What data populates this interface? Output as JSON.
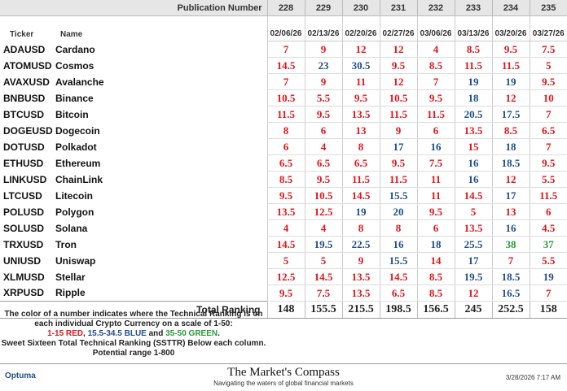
{
  "header": {
    "publication_label": "Publication Number",
    "ticker_label": "Ticker",
    "name_label": "Name"
  },
  "columns": [
    {
      "number": "228",
      "date": "02/06/26"
    },
    {
      "number": "229",
      "date": "02/13/26"
    },
    {
      "number": "230",
      "date": "02/20/26"
    },
    {
      "number": "231",
      "date": "02/27/26"
    },
    {
      "number": "232",
      "date": "03/06/26"
    },
    {
      "number": "233",
      "date": "03/13/26"
    },
    {
      "number": "234",
      "date": "03/20/26"
    },
    {
      "number": "235",
      "date": "03/27/26"
    }
  ],
  "rows": [
    {
      "ticker": "ADAUSD",
      "name": "Cardano",
      "values": [
        7,
        9,
        12,
        12,
        4,
        8.5,
        9.5,
        7.5
      ]
    },
    {
      "ticker": "ATOMUSD",
      "name": "Cosmos",
      "values": [
        14.5,
        23,
        30.5,
        9.5,
        8.5,
        11.5,
        11.5,
        5
      ]
    },
    {
      "ticker": "AVAXUSD",
      "name": "Avalanche",
      "values": [
        7,
        9,
        11,
        12,
        7,
        19,
        19,
        9.5
      ]
    },
    {
      "ticker": "BNBUSD",
      "name": "Binance",
      "values": [
        10.5,
        5.5,
        9.5,
        10.5,
        9.5,
        18,
        12,
        10
      ]
    },
    {
      "ticker": "BTCUSD",
      "name": "Bitcoin",
      "values": [
        11.5,
        9.5,
        13.5,
        11.5,
        11.5,
        20.5,
        17.5,
        7
      ]
    },
    {
      "ticker": "DOGEUSD",
      "name": "Dogecoin",
      "values": [
        8,
        6,
        13,
        9,
        6,
        13.5,
        8.5,
        6.5
      ]
    },
    {
      "ticker": "DOTUSD",
      "name": "Polkadot",
      "values": [
        6,
        4,
        8,
        17,
        16,
        15,
        18,
        7
      ]
    },
    {
      "ticker": "ETHUSD",
      "name": "Ethereum",
      "values": [
        6.5,
        6.5,
        6.5,
        9.5,
        7.5,
        16,
        18.5,
        9.5
      ]
    },
    {
      "ticker": "LINKUSD",
      "name": "ChainLink",
      "values": [
        8.5,
        9.5,
        11.5,
        11.5,
        11,
        16,
        12,
        5.5
      ]
    },
    {
      "ticker": "LTCUSD",
      "name": "Litecoin",
      "values": [
        9.5,
        10.5,
        14.5,
        15.5,
        11,
        14.5,
        17,
        11.5
      ]
    },
    {
      "ticker": "POLUSD",
      "name": "Polygon",
      "values": [
        13.5,
        12.5,
        19,
        20,
        9.5,
        5,
        13,
        6
      ]
    },
    {
      "ticker": "SOLUSD",
      "name": "Solana",
      "values": [
        4,
        4,
        8,
        8,
        6,
        13.5,
        16,
        4.5
      ]
    },
    {
      "ticker": "TRXUSD",
      "name": "Tron",
      "values": [
        14.5,
        19.5,
        22.5,
        16,
        18,
        25.5,
        38,
        37
      ]
    },
    {
      "ticker": "UNIUSD",
      "name": "Uniswap",
      "values": [
        5,
        5,
        9,
        15.5,
        14,
        17,
        7,
        5.5
      ]
    },
    {
      "ticker": "XLMUSD",
      "name": "Stellar",
      "values": [
        12.5,
        14.5,
        13.5,
        14.5,
        8.5,
        19.5,
        18.5,
        19
      ]
    },
    {
      "ticker": "XRPUSD",
      "name": "Ripple",
      "values": [
        9.5,
        7.5,
        13.5,
        6.5,
        8.5,
        12,
        16.5,
        7
      ]
    }
  ],
  "totals": {
    "label": "Total Ranking",
    "values": [
      148,
      155.5,
      215.5,
      198.5,
      156.5,
      245,
      252.5,
      158
    ]
  },
  "score_colors": [
    {
      "min": 1,
      "max": 15,
      "color": "#e3141c"
    },
    {
      "min": 15.5,
      "max": 34.5,
      "color": "#1f4e8c"
    },
    {
      "min": 35,
      "max": 50,
      "color": "#2a9a3a"
    }
  ],
  "notes": {
    "line1": "The color of a number indicates where the Technical Ranking is on each individual Crypto Currency on a scale of 1-50:",
    "legend": [
      {
        "text": "1-15 RED",
        "color": "#e3141c"
      },
      {
        "text": ", ",
        "color": "#222"
      },
      {
        "text": "15.5-34.5 BLUE",
        "color": "#1f4e8c"
      },
      {
        "text": " and ",
        "color": "#222"
      },
      {
        "text": "35-50 GREEN",
        "color": "#2a9a3a"
      },
      {
        "text": ".",
        "color": "#222"
      }
    ],
    "line2": "Sweet Sixteen Total Technical Ranking (SSTTR) Below each column.",
    "line3": "Potential range 1-800"
  },
  "footer": {
    "logo": "Optuma",
    "brand": "The Market's Compass",
    "tagline": "Navigating the waters of global financial markets",
    "timestamp": "3/28/2026 7:17 AM"
  }
}
